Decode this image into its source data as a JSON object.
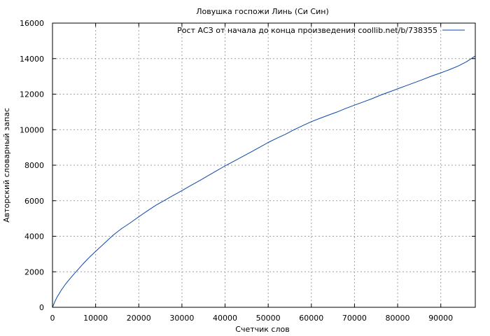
{
  "chart_data": {
    "type": "line",
    "title": "Ловушка госпожи Линь (Си Син)",
    "xlabel": "Счетчик слов",
    "ylabel": "Авторский словарный запас",
    "xlim": [
      0,
      98000
    ],
    "ylim": [
      0,
      16000
    ],
    "x_ticks": [
      0,
      10000,
      20000,
      30000,
      40000,
      50000,
      60000,
      70000,
      80000,
      90000
    ],
    "y_ticks": [
      0,
      2000,
      4000,
      6000,
      8000,
      10000,
      12000,
      14000,
      16000
    ],
    "grid": true,
    "legend_position": "top-right",
    "colors": {
      "series": "#0a48a8",
      "grid": "#a0a0a0",
      "axis": "#000000"
    },
    "series": [
      {
        "name": "Рост АСЗ от начала до конца произведения coollib.net/b/738355",
        "x": [
          0,
          500,
          1000,
          2000,
          3000,
          4000,
          5000,
          6000,
          7000,
          8000,
          9000,
          10000,
          12000,
          14000,
          16000,
          18000,
          20000,
          22000,
          24000,
          26000,
          28000,
          30000,
          32000,
          34000,
          36000,
          38000,
          40000,
          42000,
          44000,
          46000,
          48000,
          50000,
          52000,
          54000,
          56000,
          58000,
          60000,
          62000,
          64000,
          66000,
          68000,
          70000,
          72000,
          74000,
          76000,
          78000,
          80000,
          82000,
          84000,
          86000,
          88000,
          90000,
          92000,
          94000,
          96000,
          98000
        ],
        "y": [
          0,
          300,
          550,
          950,
          1300,
          1600,
          1880,
          2150,
          2420,
          2680,
          2920,
          3150,
          3600,
          4050,
          4430,
          4750,
          5100,
          5430,
          5750,
          6020,
          6300,
          6570,
          6850,
          7120,
          7400,
          7680,
          7960,
          8220,
          8480,
          8740,
          9010,
          9280,
          9520,
          9740,
          10000,
          10230,
          10450,
          10640,
          10820,
          11000,
          11200,
          11380,
          11560,
          11740,
          11940,
          12120,
          12300,
          12480,
          12660,
          12840,
          13030,
          13200,
          13380,
          13580,
          13830,
          14150
        ]
      }
    ]
  }
}
